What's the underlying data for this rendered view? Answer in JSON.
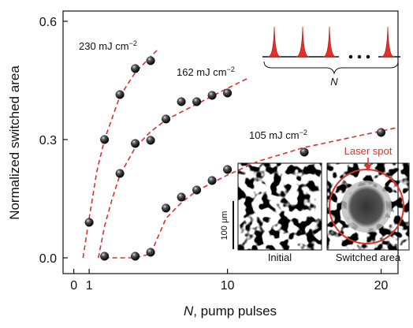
{
  "chart_data": {
    "type": "scatter",
    "ylabel": "Normalized switched area",
    "xlabel_italic": "N",
    "xlabel_rest": ", pump pulses",
    "xlim": [
      -0.7,
      21.1
    ],
    "ylim": [
      -0.04,
      0.626
    ],
    "xticks": [
      0,
      1,
      10,
      20
    ],
    "yticks": [
      {
        "value": 0,
        "label": "0.0"
      },
      0.3,
      0.6
    ],
    "marker_color": "#111111",
    "fit_color": "#e0302a",
    "series": [
      {
        "x": [
          1,
          2,
          3,
          4,
          5
        ],
        "values": [
          0.09,
          0.3,
          0.414,
          0.48,
          0.5
        ]
      },
      {
        "x": [
          2,
          3,
          4,
          5,
          6,
          7,
          8,
          9,
          10
        ],
        "values": [
          0.004,
          0.214,
          0.29,
          0.298,
          0.352,
          0.396,
          0.396,
          0.412,
          0.418
        ]
      },
      {
        "x": [
          4,
          5,
          6,
          7,
          8,
          9,
          10,
          15,
          20
        ],
        "values": [
          0.004,
          0.014,
          0.126,
          0.154,
          0.172,
          0.196,
          0.224,
          0.268,
          0.318
        ]
      }
    ],
    "fits": [
      {
        "x": [
          0.6,
          1,
          1.5,
          2,
          3,
          4,
          5,
          5.5
        ],
        "values": [
          0,
          0.1,
          0.22,
          0.3,
          0.41,
          0.47,
          0.51,
          0.53
        ]
      },
      {
        "x": [
          1.6,
          2,
          2.5,
          3,
          4,
          5,
          6,
          8,
          10,
          11.3
        ],
        "values": [
          0,
          0.08,
          0.15,
          0.21,
          0.28,
          0.32,
          0.35,
          0.39,
          0.43,
          0.455
        ]
      },
      {
        "x": [
          2,
          4,
          5,
          6,
          7,
          8,
          10,
          12,
          15,
          18,
          21
        ],
        "values": [
          0,
          0,
          0.01,
          0.1,
          0.14,
          0.17,
          0.21,
          0.245,
          0.28,
          0.305,
          0.33
        ]
      }
    ],
    "annotations": [
      {
        "text": "230 mJ cm",
        "sup": "−2"
      },
      {
        "text": "162 mJ cm",
        "sup": "−2"
      },
      {
        "text": "105 mJ cm",
        "sup": "−2"
      }
    ],
    "insets": {
      "pulse_count": "N",
      "scale_bar": "100 μm",
      "spot_label": "Laser spot",
      "images": [
        "Initial",
        "Switched area"
      ]
    }
  }
}
